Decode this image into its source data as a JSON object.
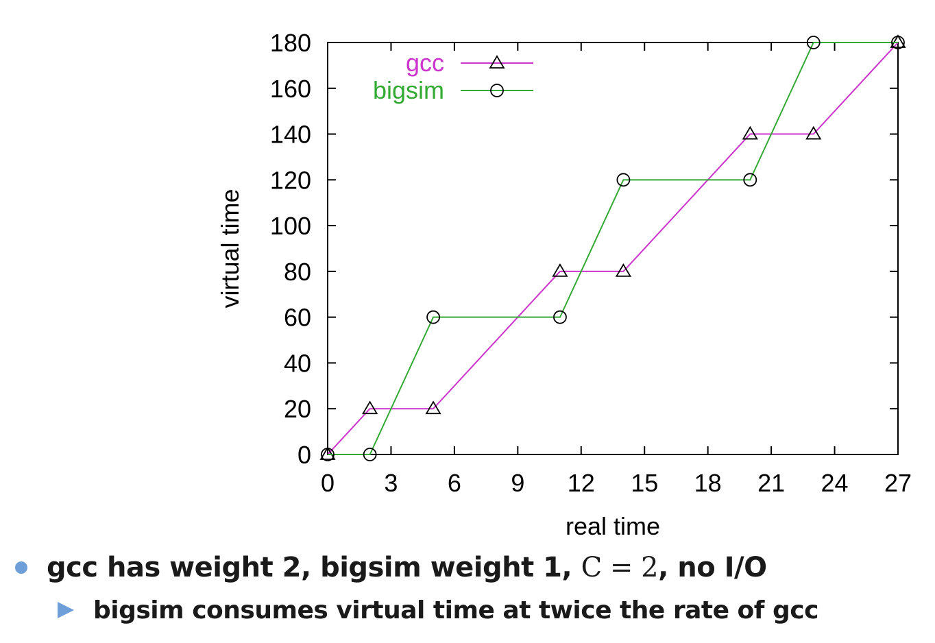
{
  "chart_data": {
    "type": "line",
    "xlabel": "real time",
    "ylabel": "virtual time",
    "xlim": [
      0,
      27
    ],
    "ylim": [
      0,
      180
    ],
    "xticks": [
      0,
      3,
      6,
      9,
      12,
      15,
      18,
      21,
      24,
      27
    ],
    "yticks": [
      0,
      20,
      40,
      60,
      80,
      100,
      120,
      140,
      160,
      180
    ],
    "grid": false,
    "legend_position": "top-left",
    "series": [
      {
        "name": "gcc",
        "color": "#cc33cc",
        "marker": "triangle",
        "x": [
          0,
          2,
          5,
          11,
          14,
          20,
          23,
          27
        ],
        "y": [
          0,
          20,
          20,
          80,
          80,
          140,
          140,
          180
        ]
      },
      {
        "name": "bigsim",
        "color": "#33aa33",
        "marker": "circle",
        "x": [
          0,
          2,
          5,
          11,
          14,
          20,
          23,
          27
        ],
        "y": [
          0,
          0,
          60,
          60,
          120,
          120,
          180,
          180
        ]
      }
    ]
  },
  "bullets": {
    "main_prefix": "gcc has weight 2, bigsim weight 1, ",
    "main_math": "C = 2",
    "main_suffix": ", no I/O",
    "sub": "bigsim consumes virtual time at twice the rate of gcc"
  },
  "colors": {
    "bullet": "#6f9fd8"
  }
}
